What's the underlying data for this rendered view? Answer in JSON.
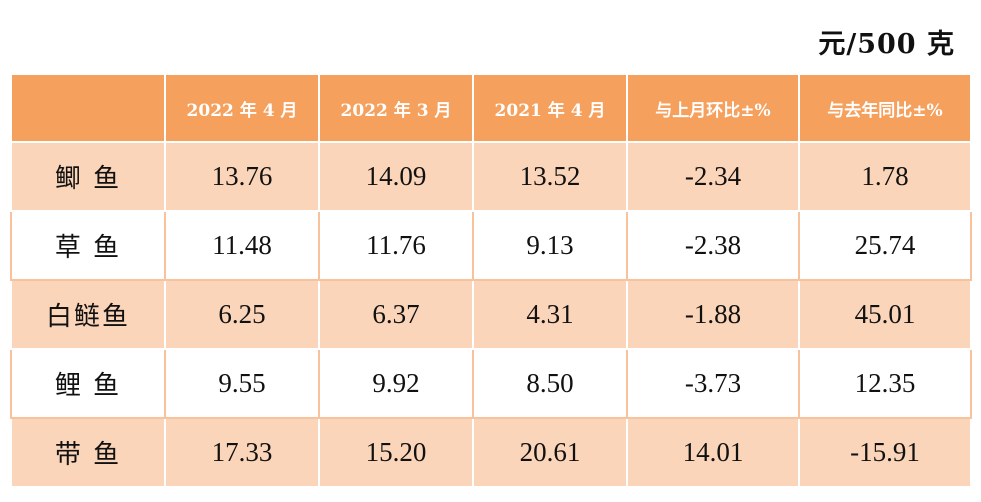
{
  "unit_label": "元/500 克",
  "table": {
    "headers": [
      "",
      "2022 年 4 月",
      "2022 年 3 月",
      "2021 年 4 月",
      "与上月环比±%",
      "与去年同比±%"
    ],
    "rows": [
      {
        "name": "鲫  鱼",
        "values": [
          "13.76",
          "14.09",
          "13.52",
          "-2.34",
          "1.78"
        ]
      },
      {
        "name": "草  鱼",
        "values": [
          "11.48",
          "11.76",
          "9.13",
          "-2.38",
          "25.74"
        ]
      },
      {
        "name": "白鲢鱼",
        "values": [
          "6.25",
          "6.37",
          "4.31",
          "-1.88",
          "45.01"
        ]
      },
      {
        "name": "鲤  鱼",
        "values": [
          "9.55",
          "9.92",
          "8.50",
          "-3.73",
          "12.35"
        ]
      },
      {
        "name": "带  鱼",
        "values": [
          "17.33",
          "15.20",
          "20.61",
          "14.01",
          "-15.91"
        ]
      }
    ]
  },
  "colors": {
    "header_bg": "#f5a05d",
    "band_bg": "#fbd5b9",
    "header_text": "#ffffff"
  }
}
